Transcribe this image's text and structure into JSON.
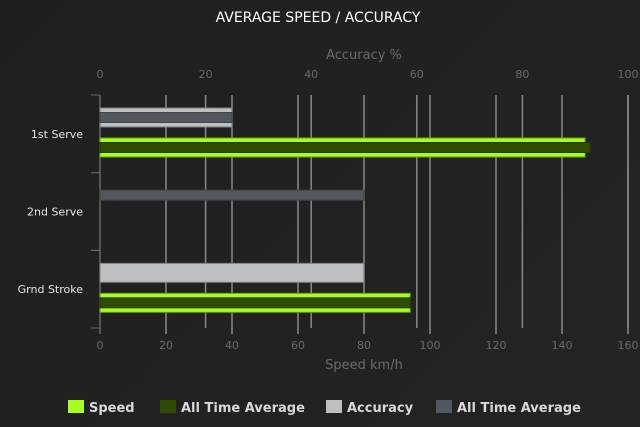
{
  "chart_data": {
    "type": "bar",
    "orientation": "horizontal",
    "title": "AVERAGE SPEED / ACCURACY",
    "categories": [
      "1st Serve",
      "2nd Serve",
      "Grnd Stroke"
    ],
    "speed_axis": {
      "label": "Speed km/h",
      "range": [
        0,
        160
      ],
      "ticks": [
        0,
        20,
        40,
        60,
        80,
        100,
        120,
        140,
        160
      ],
      "position": "bottom"
    },
    "accuracy_axis": {
      "label": "Accuracy %",
      "range": [
        0,
        100
      ],
      "ticks": [
        0,
        20,
        40,
        60,
        80,
        100
      ],
      "position": "top"
    },
    "grid": true,
    "legend_position": "bottom",
    "series": [
      {
        "name": "Speed",
        "axis": "speed",
        "color": "#a8ff1e",
        "values": [
          147,
          0,
          94
        ]
      },
      {
        "name": "All Time Average",
        "axis": "speed",
        "color": "#2f4d00",
        "values": [
          148.5,
          0,
          94
        ]
      },
      {
        "name": "Accuracy",
        "axis": "accuracy",
        "color": "#bcc0c2",
        "values": [
          25,
          0,
          50
        ]
      },
      {
        "name": "All Time Average",
        "axis": "accuracy",
        "color": "#535860",
        "values": [
          25,
          50,
          0
        ]
      }
    ]
  }
}
